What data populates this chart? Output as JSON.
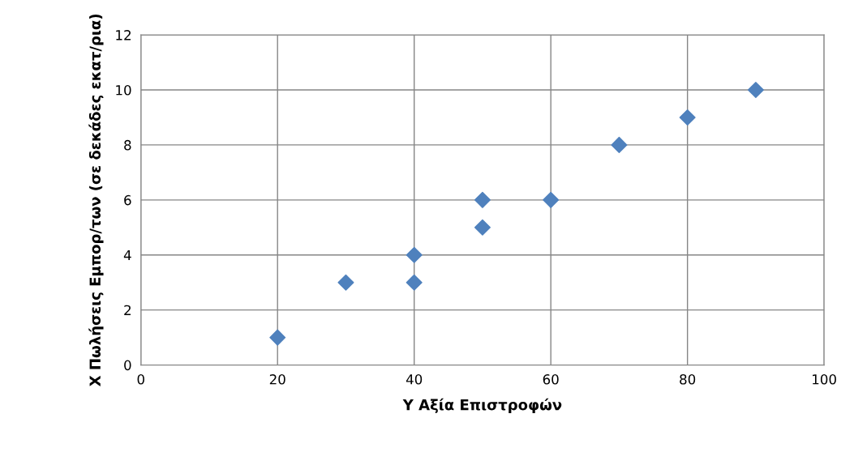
{
  "chart_data": {
    "type": "scatter",
    "xlabel": "Y Αξία Επιστροφών",
    "ylabel": "X Πωλήσεις Εμπορ/των (σε δεκάδες εκατ/ρια)",
    "x": [
      20,
      30,
      40,
      40,
      50,
      50,
      60,
      70,
      80,
      90
    ],
    "series": [
      {
        "color": "#4f81bd",
        "values": [
          1,
          3,
          4,
          3,
          6,
          5,
          6,
          8,
          9,
          10
        ]
      }
    ],
    "xlim": [
      0,
      100
    ],
    "xticks": [
      0,
      20,
      40,
      60,
      80,
      100
    ],
    "ylim": [
      0,
      12
    ],
    "yticks": [
      0,
      2,
      4,
      6,
      8,
      10,
      12
    ],
    "grid": true,
    "marker": "diamond",
    "legend": false
  }
}
